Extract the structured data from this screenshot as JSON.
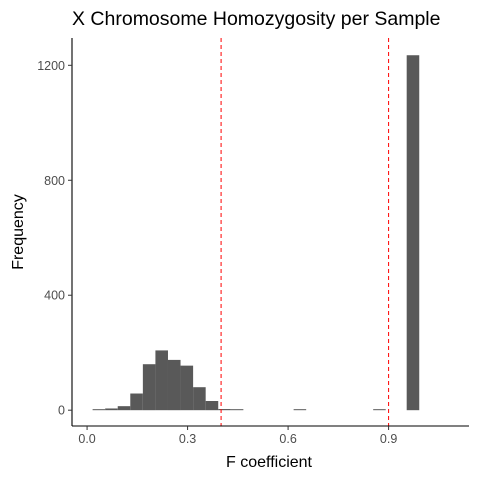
{
  "chart_data": {
    "type": "bar",
    "title": "X Chromosome Homozygosity per Sample",
    "xlabel": "F coefficient",
    "ylabel": "Frequency",
    "xlim": [
      -0.045,
      1.14
    ],
    "ylim": [
      -55,
      1295
    ],
    "xticks": [
      0.0,
      0.3,
      0.6,
      0.9
    ],
    "xtick_labels": [
      "0.0",
      "0.3",
      "0.6",
      "0.9"
    ],
    "yticks": [
      0,
      400,
      800,
      1200
    ],
    "ytick_labels": [
      "0",
      "400",
      "800",
      "1200"
    ],
    "bin_width": 0.0375,
    "bins": [
      {
        "x0": 0.0165,
        "count": 3
      },
      {
        "x0": 0.054,
        "count": 6
      },
      {
        "x0": 0.0915,
        "count": 14
      },
      {
        "x0": 0.129,
        "count": 58
      },
      {
        "x0": 0.1665,
        "count": 160
      },
      {
        "x0": 0.204,
        "count": 208
      },
      {
        "x0": 0.2415,
        "count": 175
      },
      {
        "x0": 0.279,
        "count": 155
      },
      {
        "x0": 0.3165,
        "count": 80
      },
      {
        "x0": 0.354,
        "count": 32
      },
      {
        "x0": 0.3915,
        "count": 4
      },
      {
        "x0": 0.429,
        "count": 2
      },
      {
        "x0": 0.6165,
        "count": 2
      },
      {
        "x0": 0.854,
        "count": 2
      },
      {
        "x0": 0.954,
        "count": 1235
      }
    ],
    "reference_lines": [
      {
        "x": 0.4,
        "color": "#ff0000",
        "style": "dashed"
      },
      {
        "x": 0.9,
        "color": "#ff0000",
        "style": "dashed"
      }
    ],
    "bar_color": "#595959",
    "grid": false,
    "legend": "none"
  }
}
